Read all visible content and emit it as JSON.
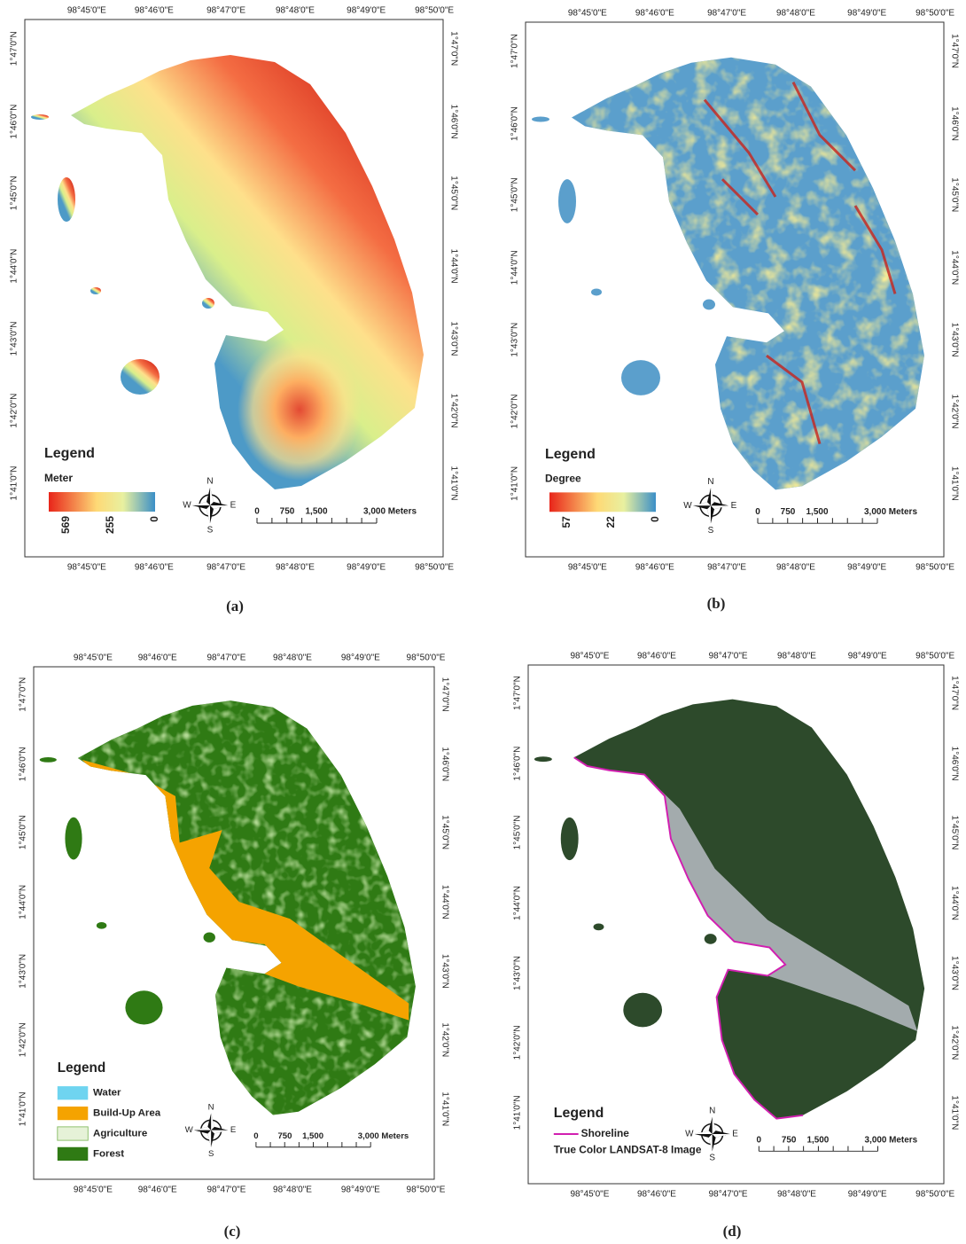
{
  "graticule": {
    "longitudes": [
      "98°45'0\"E",
      "98°46'0\"E",
      "98°47'0\"E",
      "98°48'0\"E",
      "98°49'0\"E",
      "98°50'0\"E"
    ],
    "latitudes": [
      "1°47'0\"N",
      "1°46'0\"N",
      "1°45'0\"N",
      "1°44'0\"N",
      "1°43'0\"N",
      "1°42'0\"N",
      "1°41'0\"N"
    ]
  },
  "scale_bar": {
    "labels": [
      "0",
      "750",
      "1,500",
      "3,000 Meters"
    ]
  },
  "north_arrow": {
    "n": "N",
    "e": "E",
    "s": "S",
    "w": "W"
  },
  "panels": [
    {
      "caption": "(a)",
      "legend": {
        "title": "Legend",
        "unit": "Meter",
        "values": [
          569,
          255,
          0
        ]
      }
    },
    {
      "caption": "(b)",
      "legend": {
        "title": "Legend",
        "unit": "Degree",
        "values": [
          57,
          22,
          0
        ]
      }
    },
    {
      "caption": "(c)",
      "legend": {
        "title": "Legend",
        "items": [
          "Water",
          "Build-Up Area",
          "Agriculture",
          "Forest"
        ]
      }
    },
    {
      "caption": "(d)",
      "legend": {
        "title": "Legend",
        "items": [
          "Shoreline",
          "True Color LANDSAT-8 Image"
        ]
      }
    }
  ]
}
